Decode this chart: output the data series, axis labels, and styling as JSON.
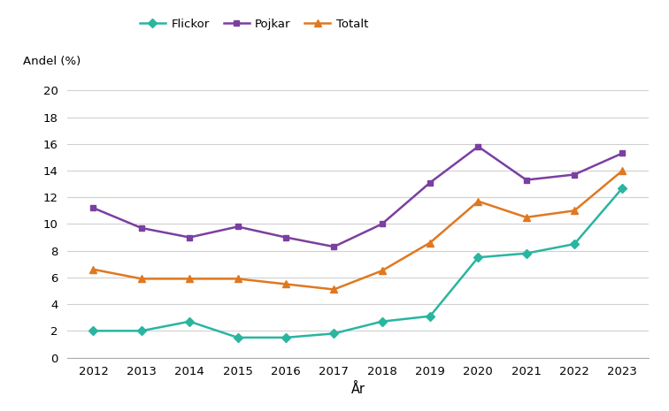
{
  "years": [
    2012,
    2013,
    2014,
    2015,
    2016,
    2017,
    2018,
    2019,
    2020,
    2021,
    2022,
    2023
  ],
  "flickor": [
    2.0,
    2.0,
    2.7,
    1.5,
    1.5,
    1.8,
    2.7,
    3.1,
    7.5,
    7.8,
    8.5,
    12.7
  ],
  "pojkar": [
    11.2,
    9.7,
    9.0,
    9.8,
    9.0,
    8.3,
    10.0,
    13.1,
    15.8,
    13.3,
    13.7,
    15.3
  ],
  "totalt": [
    6.6,
    5.9,
    5.9,
    5.9,
    5.5,
    5.1,
    6.5,
    8.6,
    11.7,
    10.5,
    11.0,
    14.0
  ],
  "flickor_color": "#2ab5a0",
  "pojkar_color": "#7b3fa0",
  "totalt_color": "#e07820",
  "ylabel": "Andel (%)",
  "xlabel": "År",
  "ylim": [
    0,
    20
  ],
  "yticks": [
    0,
    2,
    4,
    6,
    8,
    10,
    12,
    14,
    16,
    18,
    20
  ],
  "legend_flickor": "Flickor",
  "legend_pojkar": "Pojkar",
  "legend_totalt": "Totalt",
  "background_color": "#ffffff",
  "grid_color": "#d0d0d0"
}
